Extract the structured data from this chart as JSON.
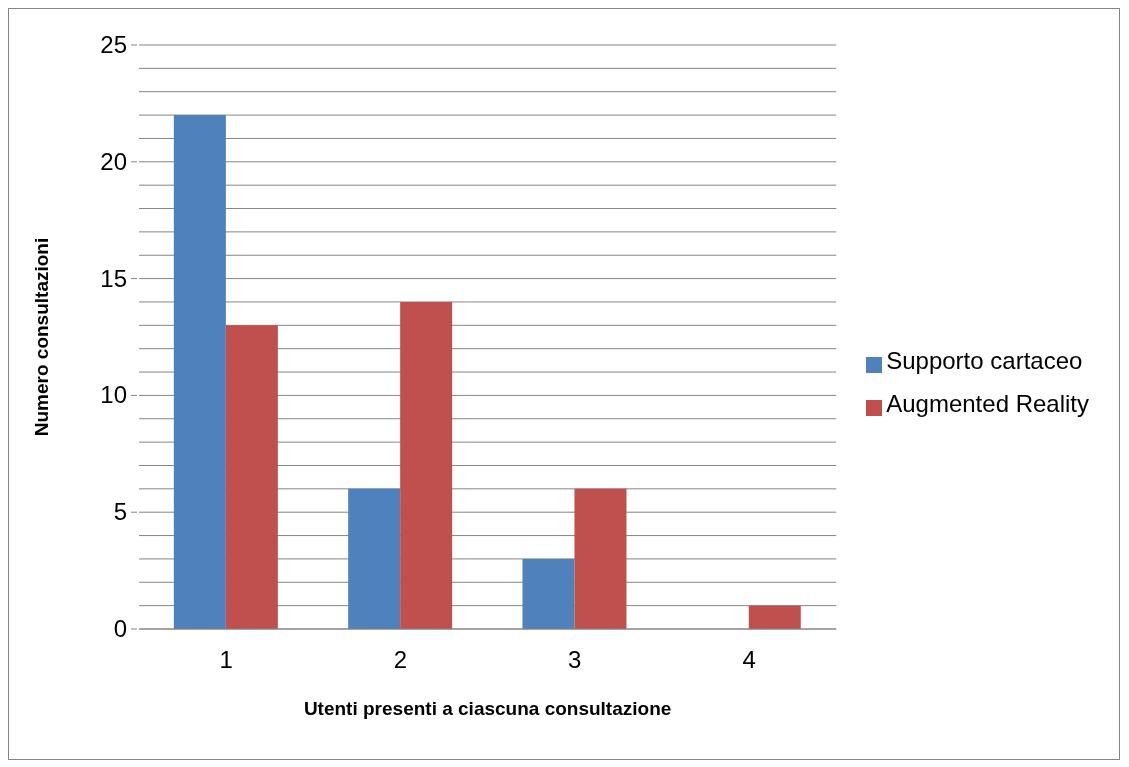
{
  "chart_data": {
    "type": "bar",
    "categories": [
      "1",
      "2",
      "3",
      "4"
    ],
    "series": [
      {
        "name": "Supporto cartaceo",
        "color": "#4f81bd",
        "values": [
          22,
          6,
          3,
          0
        ]
      },
      {
        "name": "Augmented Reality",
        "color": "#c0504d",
        "values": [
          13,
          14,
          6,
          1
        ]
      }
    ],
    "xlabel": "Utenti presenti a ciascuna consultazione",
    "ylabel": "Numero consultazioni",
    "ylim": [
      0,
      25
    ],
    "yticks": [
      0,
      {
        "value": 1,
        "label": null
      },
      {
        "value": 2,
        "label": null
      },
      {
        "value": 3,
        "label": null
      },
      {
        "value": 4,
        "label": null
      },
      5,
      {
        "value": 6,
        "label": null
      },
      {
        "value": 7,
        "label": null
      },
      {
        "value": 8,
        "label": null
      },
      {
        "value": 9,
        "label": null
      },
      10,
      {
        "value": 11,
        "label": null
      },
      {
        "value": 12,
        "label": null
      },
      {
        "value": 13,
        "label": null
      },
      {
        "value": 14,
        "label": null
      },
      15,
      {
        "value": 16,
        "label": null
      },
      {
        "value": 17,
        "label": null
      },
      {
        "value": 18,
        "label": null
      },
      {
        "value": 19,
        "label": null
      },
      20,
      {
        "value": 21,
        "label": null
      },
      {
        "value": 22,
        "label": null
      },
      {
        "value": 23,
        "label": null
      },
      {
        "value": 24,
        "label": null
      },
      25
    ],
    "grid": "y",
    "legend": "right"
  }
}
